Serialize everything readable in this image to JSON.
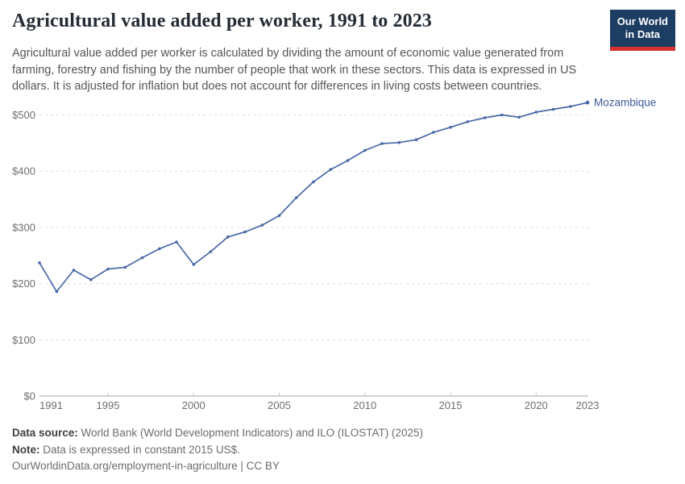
{
  "header": {
    "title": "Agricultural value added per worker, 1991 to 2023",
    "logo": {
      "line1": "Our World",
      "line2": "in Data"
    }
  },
  "subtitle": "Agricultural value added per worker is calculated by dividing the amount of economic value generated from farming, forestry and fishing by the number of people that work in these sectors. This data is expressed in US dollars. It is adjusted for inflation but does not account for differences in living costs between countries.",
  "chart_data": {
    "type": "line",
    "title": "Agricultural value added per worker, 1991 to 2023",
    "xlabel": "",
    "ylabel": "",
    "xlim": [
      1991,
      2023
    ],
    "ylim": [
      0,
      540
    ],
    "grid": "horizontal dashed",
    "legend_position": "end-of-line label",
    "marker": "point",
    "series": [
      {
        "name": "Mozambique",
        "color": "#4a69a8",
        "x": [
          1991,
          1992,
          1993,
          1994,
          1995,
          1996,
          1997,
          1998,
          1999,
          2000,
          2001,
          2002,
          2003,
          2004,
          2005,
          2006,
          2007,
          2008,
          2009,
          2010,
          2011,
          2012,
          2013,
          2014,
          2015,
          2016,
          2017,
          2018,
          2019,
          2020,
          2021,
          2022,
          2023
        ],
        "values": [
          237,
          186,
          224,
          207,
          226,
          229,
          246,
          262,
          274,
          234,
          257,
          283,
          292,
          304,
          321,
          353,
          381,
          403,
          419,
          437,
          449,
          451,
          456,
          469,
          478,
          488,
          495,
          500,
          496,
          505,
          510,
          515,
          522
        ]
      }
    ],
    "xticks": [
      {
        "year": 1991,
        "label": "1991"
      },
      {
        "year": 1995,
        "label": "1995"
      },
      {
        "year": 2000,
        "label": "2000"
      },
      {
        "year": 2005,
        "label": "2005"
      },
      {
        "year": 2010,
        "label": "2010"
      },
      {
        "year": 2015,
        "label": "2015"
      },
      {
        "year": 2020,
        "label": "2020"
      },
      {
        "year": 2023,
        "label": "2023"
      }
    ],
    "yticks": [
      {
        "value": 0,
        "label": "$0"
      },
      {
        "value": 100,
        "label": "$100"
      },
      {
        "value": 200,
        "label": "$200"
      },
      {
        "value": 300,
        "label": "$300"
      },
      {
        "value": 400,
        "label": "$400"
      },
      {
        "value": 500,
        "label": "$500"
      }
    ]
  },
  "colors": {
    "line": "#4a69a8",
    "series_label": "#3b5a96",
    "grid": "#dcdcdc",
    "axis": "#a3a3a3",
    "tick": "#c2c2c2",
    "tick_text": "#6e6e6e",
    "logo_bg": "#1d3d63",
    "logo_accent": "#d7312e"
  },
  "footer": {
    "datasource_label": "Data source:",
    "datasource_text": "World Bank (World Development Indicators) and ILO (ILOSTAT) (2025)",
    "note_label": "Note:",
    "note_text": "Data is expressed in constant 2015 US$.",
    "citation": "OurWorldinData.org/employment-in-agriculture | CC BY"
  }
}
